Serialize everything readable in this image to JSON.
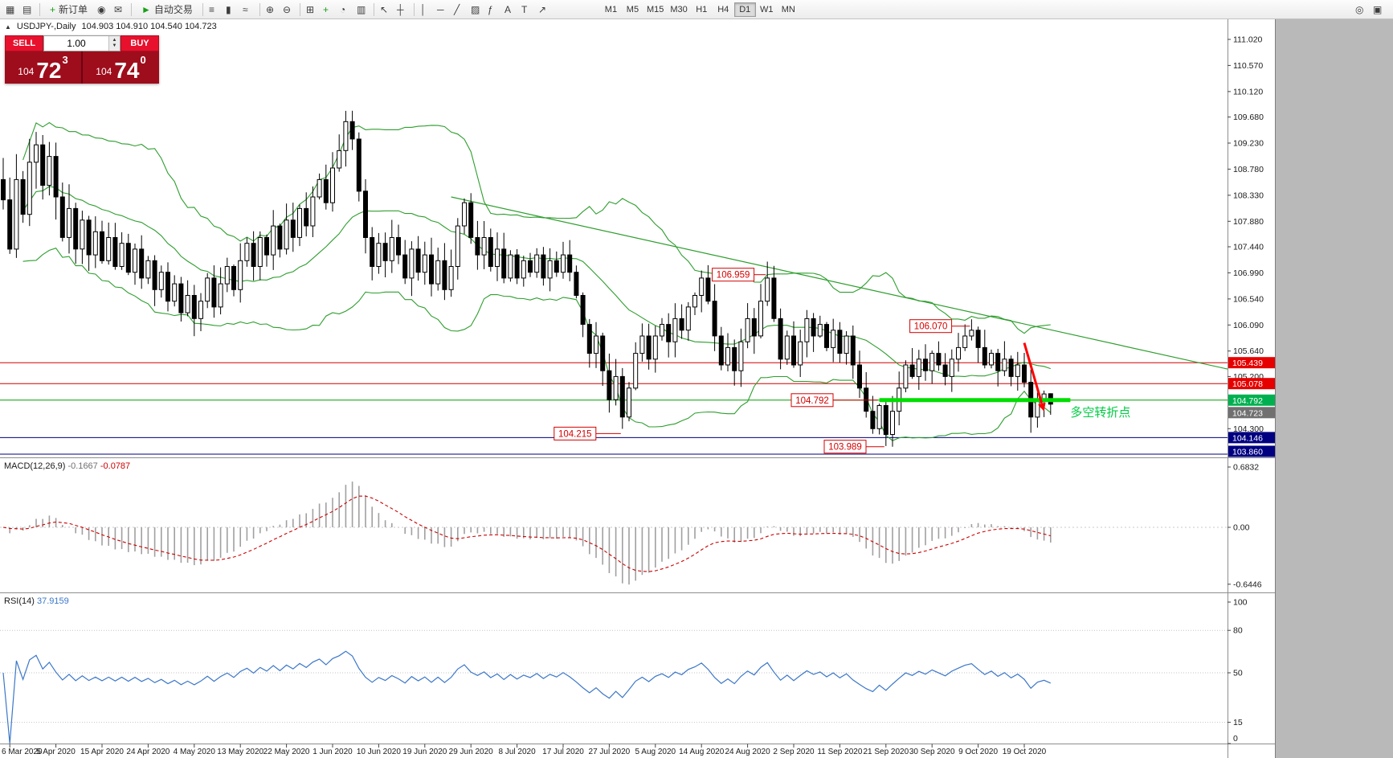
{
  "toolbar": {
    "groups": [
      [
        {
          "name": "new-chart-button",
          "glyph": "▦"
        },
        {
          "name": "chart-profiles-button",
          "glyph": "▤"
        }
      ],
      [
        {
          "name": "new-order-button",
          "glyph": "+",
          "glyph_color": "#18a018",
          "label": "新订单"
        },
        {
          "name": "alerts-button",
          "glyph": "◉"
        },
        {
          "name": "mail-button",
          "glyph": "✉"
        }
      ],
      [
        {
          "name": "autotrading-button",
          "glyph": "►",
          "glyph_color": "#18a018",
          "label": "自动交易"
        }
      ],
      [
        {
          "name": "bar-chart-button",
          "glyph": "≡"
        },
        {
          "name": "candlestick-chart-button",
          "glyph": "▮"
        },
        {
          "name": "line-chart-button",
          "glyph": "≈"
        }
      ],
      [
        {
          "name": "zoom-in-button",
          "glyph": "⊕"
        },
        {
          "name": "zoom-out-button",
          "glyph": "⊖"
        }
      ],
      [
        {
          "name": "tile-windows-button",
          "glyph": "⊞"
        },
        {
          "name": "indicators-button",
          "glyph": "+",
          "glyph_color": "#18a018"
        },
        {
          "name": "periods-button",
          "glyph": "◔"
        },
        {
          "name": "templates-button",
          "glyph": "▥"
        }
      ],
      [
        {
          "name": "cursor-button",
          "glyph": "↖"
        },
        {
          "name": "crosshair-button",
          "glyph": "┼"
        }
      ],
      [
        {
          "name": "vertical-line-button",
          "glyph": "│"
        },
        {
          "name": "horizontal-line-button",
          "glyph": "─"
        },
        {
          "name": "trendline-button",
          "glyph": "╱"
        },
        {
          "name": "equidistant-channel-button",
          "glyph": "▨"
        },
        {
          "name": "fibonacci-button",
          "glyph": "ƒ"
        },
        {
          "name": "text-button",
          "glyph": "A"
        },
        {
          "name": "label-button",
          "glyph": "T"
        },
        {
          "name": "arrows-button",
          "glyph": "↗"
        }
      ]
    ],
    "timeframes": [
      {
        "label": "M1"
      },
      {
        "label": "M5"
      },
      {
        "label": "M15"
      },
      {
        "label": "M30"
      },
      {
        "label": "H1"
      },
      {
        "label": "H4"
      },
      {
        "label": "D1",
        "active": true
      },
      {
        "label": "W1"
      },
      {
        "label": "MN"
      }
    ],
    "right_icons": [
      {
        "name": "quick-search-button",
        "glyph": "◎"
      },
      {
        "name": "community-button",
        "glyph": "▣"
      }
    ]
  },
  "chart": {
    "collapse_icon": "▲",
    "title": "USDJPY-,Daily",
    "ohlc_text": "104.903 104.910 104.540 104.723"
  },
  "one_click": {
    "sell_label": "SELL",
    "buy_label": "BUY",
    "volume": "1.00",
    "up_glyph": "▲",
    "down_glyph": "▼",
    "bid_small": "104",
    "bid_big": "72",
    "bid_sup": "3",
    "ask_small": "104",
    "ask_big": "74",
    "ask_sup": "0"
  },
  "price_axis": {
    "labels": [
      "111.020",
      "110.570",
      "110.120",
      "109.680",
      "109.230",
      "108.780",
      "108.330",
      "107.880",
      "107.440",
      "106.990",
      "106.540",
      "106.090",
      "105.640",
      "105.200",
      "104.300"
    ],
    "boxed": [
      {
        "text": "105.439",
        "bg": "#e60000",
        "fg": "#ffffff"
      },
      {
        "text": "105.078",
        "bg": "#e60000",
        "fg": "#ffffff"
      },
      {
        "text": "104.792",
        "bg": "#00b050",
        "fg": "#ffffff"
      },
      {
        "text": "104.723",
        "bg": "#707070",
        "fg": "#ffffff"
      },
      {
        "text": "104.146",
        "bg": "#000080",
        "fg": "#ffffff"
      },
      {
        "text": "103.860",
        "bg": "#000080",
        "fg": "#ffffff"
      }
    ]
  },
  "macd": {
    "name": "MACD(12,26,9)",
    "main_value": "-0.1667",
    "signal_value": "-0.0787",
    "axis": [
      "0.6832",
      "0.00",
      "-0.6446"
    ]
  },
  "rsi": {
    "name": "RSI(14)",
    "value": "37.9159",
    "axis": [
      "100",
      "80",
      "50",
      "15",
      "0"
    ]
  },
  "time_axis": [
    "6 Mar 2020",
    "5 Apr 2020",
    "15 Apr 2020",
    "24 Apr 2020",
    "4 May 2020",
    "13 May 2020",
    "22 May 2020",
    "1 Jun 2020",
    "10 Jun 2020",
    "19 Jun 2020",
    "29 Jun 2020",
    "8 Jul 2020",
    "17 Jul 2020",
    "27 Jul 2020",
    "5 Aug 2020",
    "14 Aug 2020",
    "24 Aug 2020",
    "2 Sep 2020",
    "11 Sep 2020",
    "21 Sep 2020",
    "30 Sep 2020",
    "9 Oct 2020",
    "19 Oct 2020"
  ],
  "colors": {
    "bollinger": "#2e9e2e",
    "trendline": "#2e9e2e",
    "support_thick": "#00dd00",
    "resistance_line": "#d40000",
    "navy_line": "#000080",
    "candle_up_fill": "#ffffff",
    "candle_down_fill": "#000000",
    "candle_stroke": "#000000",
    "macd_hist": "#a0a0a0",
    "macd_signal": "#cc0000",
    "rsi_line": "#3b77c9",
    "note_green": "#00cc44",
    "arrow_red": "#ff0000",
    "sell_buy_red": "#e8112d",
    "price_panel_red": "#9e0d1c"
  },
  "chart_data": {
    "type": "candlestick",
    "symbol": "USDJPY-",
    "timeframe": "Daily",
    "y_axis_range": [
      103.86,
      111.02
    ],
    "current_ohlc": {
      "open": 104.903,
      "high": 104.91,
      "low": 104.54,
      "close": 104.723
    },
    "approx_daily_closes": [
      108.25,
      107.4,
      108.6,
      108.0,
      108.9,
      109.2,
      108.5,
      109.0,
      108.3,
      107.6,
      108.1,
      107.4,
      107.9,
      107.3,
      107.7,
      107.2,
      107.6,
      107.1,
      107.5,
      107.0,
      107.4,
      106.9,
      107.2,
      106.7,
      107.0,
      106.5,
      106.8,
      106.3,
      106.6,
      106.2,
      106.5,
      106.9,
      106.4,
      106.8,
      107.1,
      106.7,
      107.2,
      107.5,
      107.1,
      107.6,
      107.3,
      107.8,
      107.4,
      107.9,
      107.6,
      108.1,
      107.8,
      108.3,
      108.6,
      108.2,
      108.8,
      109.1,
      109.6,
      109.3,
      108.4,
      107.6,
      107.1,
      107.5,
      107.2,
      107.6,
      107.3,
      106.9,
      107.4,
      107.0,
      107.3,
      106.8,
      107.2,
      106.7,
      107.1,
      107.8,
      108.2,
      107.6,
      107.3,
      107.6,
      107.1,
      107.4,
      106.9,
      107.3,
      106.9,
      107.2,
      107.0,
      107.3,
      106.9,
      107.2,
      107.0,
      107.3,
      107.0,
      106.6,
      106.1,
      105.6,
      105.9,
      105.3,
      104.8,
      105.2,
      104.5,
      105.0,
      105.6,
      105.9,
      105.5,
      105.9,
      106.1,
      105.8,
      106.2,
      106.0,
      106.4,
      106.6,
      106.9,
      106.5,
      105.9,
      105.4,
      105.7,
      105.3,
      105.8,
      106.2,
      105.9,
      106.5,
      106.9,
      106.2,
      105.5,
      105.9,
      105.4,
      105.8,
      106.2,
      105.9,
      106.1,
      105.7,
      106.0,
      105.6,
      105.9,
      105.4,
      105.0,
      104.6,
      104.3,
      104.7,
      104.2,
      104.6,
      105.0,
      105.4,
      105.2,
      105.5,
      105.3,
      105.6,
      105.4,
      105.2,
      105.5,
      105.7,
      105.9,
      106.0,
      105.7,
      105.4,
      105.6,
      105.3,
      105.5,
      105.2,
      105.4,
      105.1,
      104.5,
      104.8,
      104.9,
      104.723
    ],
    "indicators": [
      {
        "name": "Bollinger Bands"
      },
      {
        "name": "MACD",
        "params": "12,26,9",
        "main": -0.1667,
        "signal": -0.0787
      },
      {
        "name": "RSI",
        "params": "14",
        "value": 37.9159
      }
    ],
    "horizontal_levels": [
      {
        "price": 105.439,
        "color": "#d40000"
      },
      {
        "price": 105.078,
        "color": "#d40000"
      },
      {
        "price": 104.792,
        "color": "#00a000"
      },
      {
        "price": 104.146,
        "color": "#000080"
      },
      {
        "price": 103.86,
        "color": "#000080"
      }
    ],
    "support_segment": {
      "price": 104.792,
      "from_index": 133,
      "to_index": 162
    },
    "trendline": {
      "from_index": 68,
      "from_price": 108.3,
      "to_index": 186,
      "to_price": 105.33
    },
    "arrow": {
      "from_index": 155,
      "from_price": 105.78,
      "to_index": 158,
      "to_price": 104.6
    },
    "note": {
      "text": "多空转折点",
      "index": 162,
      "price": 104.57
    },
    "callouts": [
      {
        "text": "106.959",
        "value": 106.959,
        "box_index": 108,
        "anchor_index": 116
      },
      {
        "text": "106.070",
        "value": 106.07,
        "box_index": 138,
        "anchor_index": 147
      },
      {
        "text": "104.792",
        "value": 104.792,
        "box_index": 120,
        "anchor_index": 133
      },
      {
        "text": "104.215",
        "value": 104.215,
        "box_index": 84,
        "anchor_index": 94
      },
      {
        "text": "103.989",
        "value": 103.989,
        "box_index": 125,
        "anchor_index": 134
      }
    ]
  }
}
